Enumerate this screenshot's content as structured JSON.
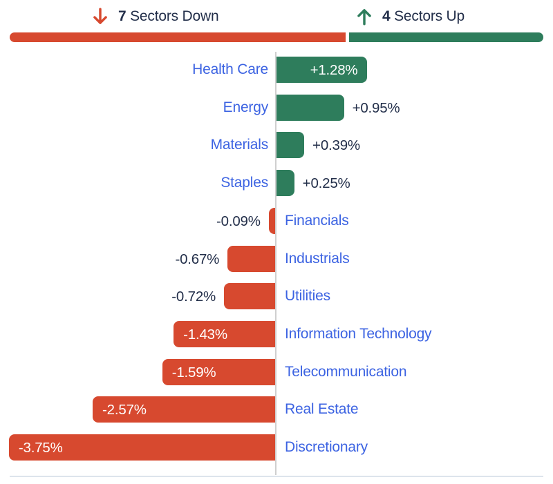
{
  "colors": {
    "up_green": "#2e7d5c",
    "down_red": "#d7492f",
    "category_blue": "#3c63e2",
    "text_dark": "#232f4a",
    "axis_gray": "#cfcfcf",
    "divider_gray": "#dde4ec"
  },
  "header": {
    "down": {
      "count": "7",
      "label": "Sectors Down",
      "icon": "arrow-down"
    },
    "up": {
      "count": "4",
      "label": "Sectors Up",
      "icon": "arrow-up"
    }
  },
  "summary_bar": {
    "down_count": 7,
    "up_count": 4,
    "total": 11
  },
  "chart_data": {
    "type": "bar",
    "orientation": "horizontal-diverging",
    "unit": "percent",
    "title": "",
    "xlabel": "",
    "ylabel": "",
    "xlim": [
      -3.9,
      1.4
    ],
    "grid": false,
    "legend_position": "none",
    "categories": [
      "Health Care",
      "Energy",
      "Materials",
      "Staples",
      "Financials",
      "Industrials",
      "Utilities",
      "Information Technology",
      "Telecommunication",
      "Real Estate",
      "Discretionary"
    ],
    "values": [
      1.28,
      0.95,
      0.39,
      0.25,
      -0.09,
      -0.67,
      -0.72,
      -1.43,
      -1.59,
      -2.57,
      -3.75
    ],
    "value_labels": [
      "+1.28%",
      "+0.95%",
      "+0.39%",
      "+0.25%",
      "-0.09%",
      "-0.67%",
      "-0.72%",
      "-1.43%",
      "-1.59%",
      "-2.57%",
      "-3.75%"
    ]
  }
}
